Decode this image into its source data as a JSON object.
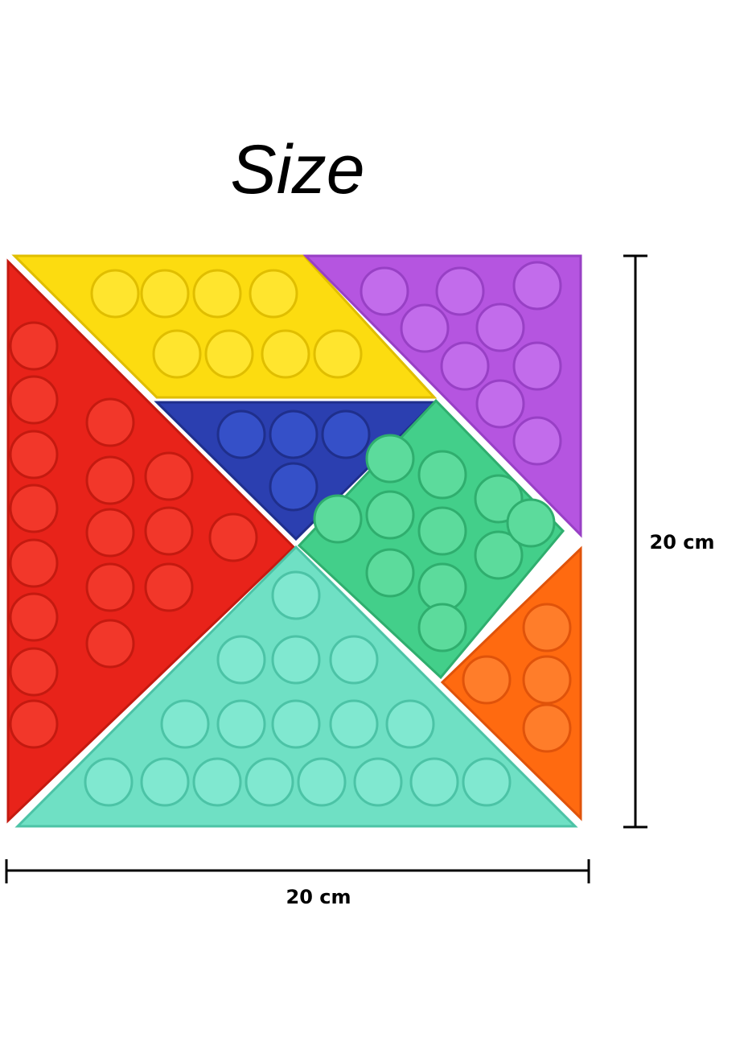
{
  "title": "Size",
  "dimensions": {
    "height": "20 cm",
    "width": "20 cm"
  }
}
